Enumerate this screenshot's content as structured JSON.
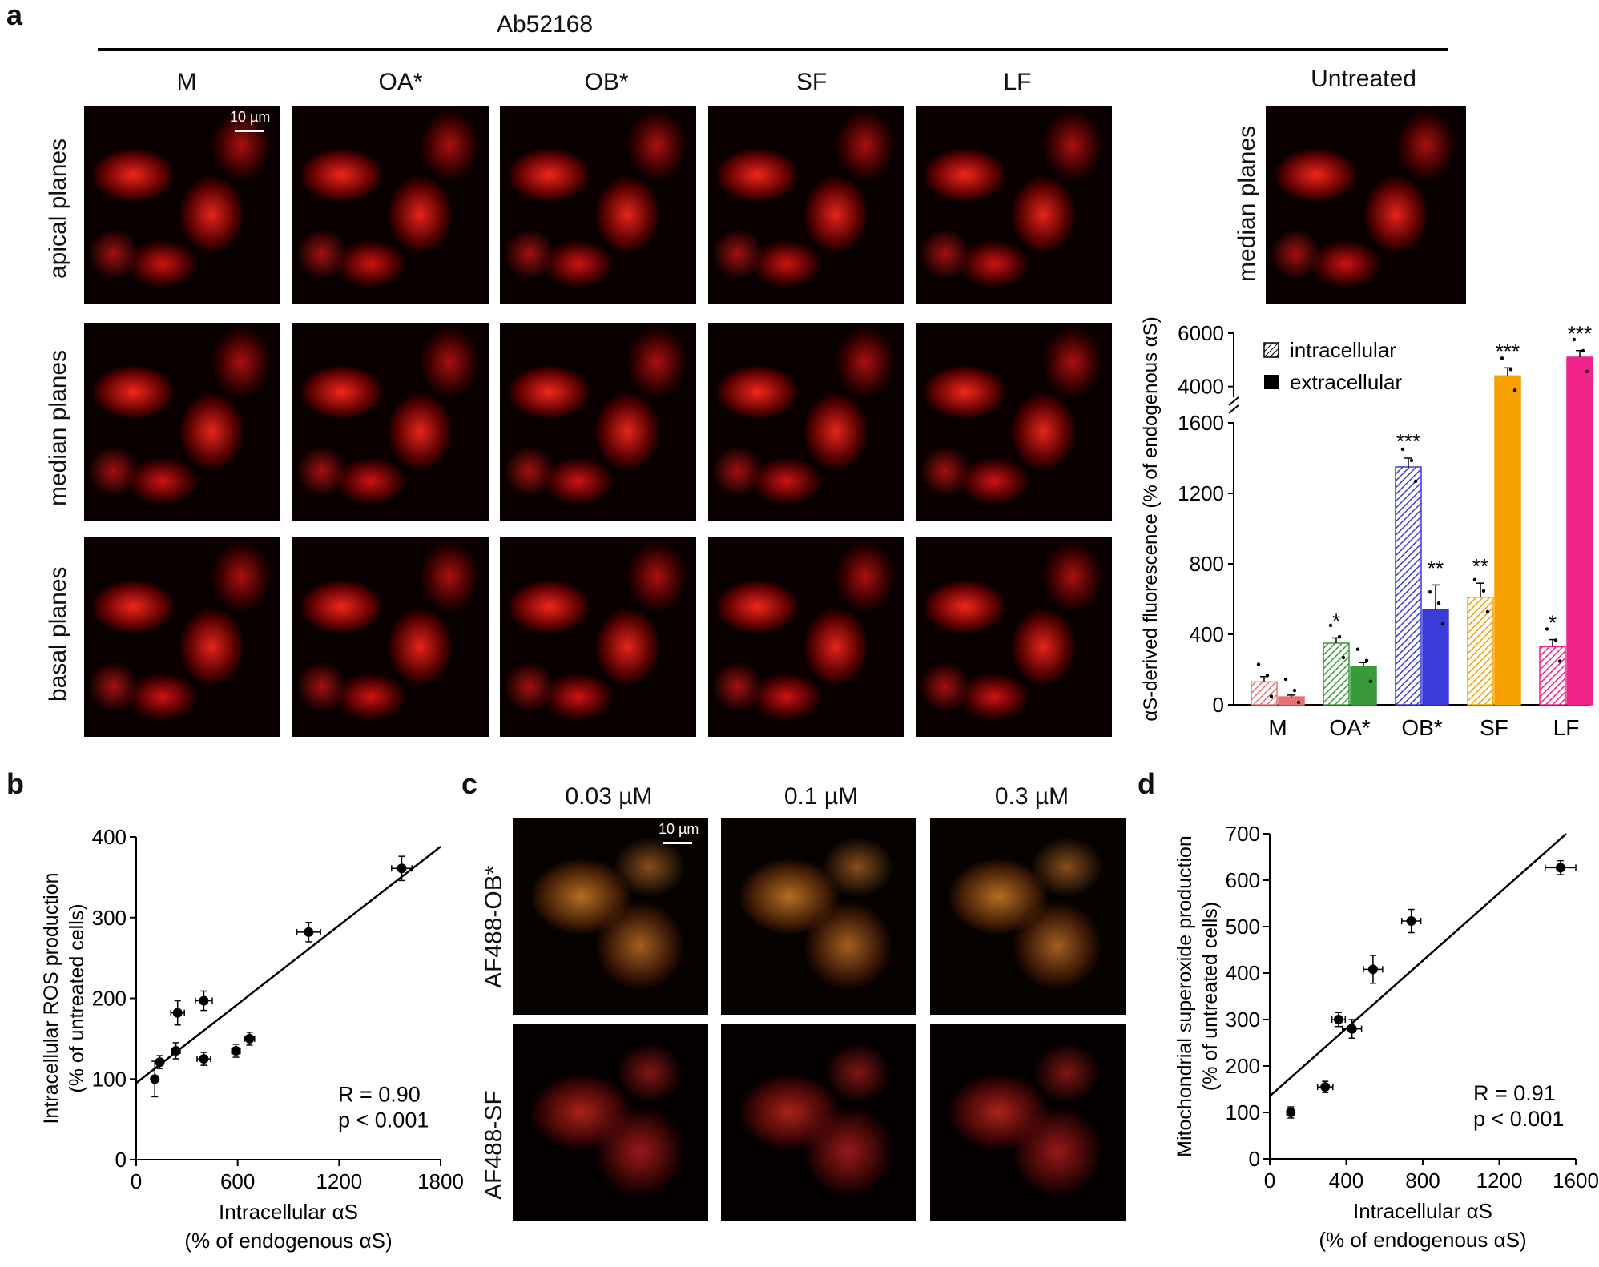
{
  "panel_a": {
    "letter": "a",
    "header": "Ab52168",
    "columns": [
      "M",
      "OA*",
      "OB*",
      "SF",
      "LF"
    ],
    "untreated_label": "Untreated",
    "rows": [
      "apical planes",
      "median planes",
      "basal planes"
    ],
    "untreated_row": "median planes",
    "scale_label": "10 µm"
  },
  "panel_b": {
    "letter": "b"
  },
  "panel_c": {
    "letter": "c",
    "columns": [
      "0.03 µM",
      "0.1 µM",
      "0.3 µM"
    ],
    "rows": [
      "AF488-OB*",
      "AF488-SF"
    ],
    "scale_label": "10 µm"
  },
  "panel_d": {
    "letter": "d"
  },
  "chart_data": [
    {
      "id": "bar-a",
      "type": "bar",
      "categories": [
        "M",
        "OA*",
        "OB*",
        "SF",
        "LF"
      ],
      "ylabel": "αS-derived fluorescence (% of endogenous αS)",
      "axis_break": [
        1600,
        3600
      ],
      "yticks_lower": [
        0,
        400,
        800,
        1200,
        1600
      ],
      "yticks_upper": [
        4000,
        6000
      ],
      "legend": [
        "intracellular",
        "extracellular"
      ],
      "legend_position": "top-right",
      "colors": [
        "#e87070",
        "#3a9a3a",
        "#3b3bd8",
        "#f5a000",
        "#ee2288"
      ],
      "series": [
        {
          "name": "intracellular",
          "pattern": "hatched",
          "values": [
            130,
            350,
            1350,
            610,
            330
          ],
          "errors": [
            30,
            30,
            50,
            80,
            40
          ],
          "significance": [
            "",
            "*",
            "***",
            "**",
            "*"
          ]
        },
        {
          "name": "extracellular",
          "pattern": "solid",
          "values": [
            45,
            215,
            540,
            4400,
            5100
          ],
          "errors": [
            10,
            25,
            140,
            300,
            250
          ],
          "significance": [
            "",
            "",
            "**",
            "***",
            "***"
          ]
        }
      ]
    },
    {
      "id": "scatter-b",
      "type": "scatter",
      "xlabel": [
        "Intracellular αS",
        "(% of endogenous αS)"
      ],
      "ylabel": [
        "Intracellular ROS  production",
        "(% of untreated cells)"
      ],
      "xlim": [
        0,
        1800
      ],
      "ylim": [
        0,
        400
      ],
      "xticks": [
        0,
        600,
        1200,
        1800
      ],
      "yticks": [
        0,
        100,
        200,
        300,
        400
      ],
      "annotation": [
        "R = 0.90",
        "p < 0.001"
      ],
      "fit": {
        "x0": 0,
        "y0": 95,
        "x1": 1800,
        "y1": 388
      },
      "points": [
        {
          "x": 110,
          "y": 100,
          "xerr": 15,
          "yerr": 22
        },
        {
          "x": 140,
          "y": 121,
          "xerr": 20,
          "yerr": 8
        },
        {
          "x": 235,
          "y": 135,
          "xerr": 25,
          "yerr": 10
        },
        {
          "x": 245,
          "y": 182,
          "xerr": 40,
          "yerr": 15
        },
        {
          "x": 400,
          "y": 197,
          "xerr": 50,
          "yerr": 12
        },
        {
          "x": 400,
          "y": 125,
          "xerr": 40,
          "yerr": 8
        },
        {
          "x": 590,
          "y": 135,
          "xerr": 25,
          "yerr": 8
        },
        {
          "x": 670,
          "y": 150,
          "xerr": 30,
          "yerr": 8
        },
        {
          "x": 1020,
          "y": 282,
          "xerr": 70,
          "yerr": 12
        },
        {
          "x": 1570,
          "y": 361,
          "xerr": 60,
          "yerr": 15
        }
      ]
    },
    {
      "id": "scatter-d",
      "type": "scatter",
      "xlabel": [
        "Intracellular αS",
        "(% of endogenous αS)"
      ],
      "ylabel": [
        "Mitochondrial superoxide production",
        "(% of untreated cells)"
      ],
      "xlim": [
        0,
        1600
      ],
      "ylim": [
        0,
        700
      ],
      "xticks": [
        0,
        400,
        800,
        1200,
        1600
      ],
      "yticks": [
        0,
        100,
        200,
        300,
        400,
        500,
        600,
        700
      ],
      "annotation": [
        "R = 0.91",
        "p < 0.001"
      ],
      "fit": {
        "x0": 0,
        "y0": 135,
        "x1": 1550,
        "y1": 700
      },
      "points": [
        {
          "x": 110,
          "y": 100,
          "xerr": 20,
          "yerr": 12
        },
        {
          "x": 290,
          "y": 155,
          "xerr": 40,
          "yerr": 12
        },
        {
          "x": 360,
          "y": 300,
          "xerr": 35,
          "yerr": 15
        },
        {
          "x": 430,
          "y": 280,
          "xerr": 50,
          "yerr": 20
        },
        {
          "x": 540,
          "y": 408,
          "xerr": 50,
          "yerr": 30
        },
        {
          "x": 740,
          "y": 512,
          "xerr": 50,
          "yerr": 25
        },
        {
          "x": 1520,
          "y": 627,
          "xerr": 80,
          "yerr": 15
        }
      ]
    }
  ]
}
